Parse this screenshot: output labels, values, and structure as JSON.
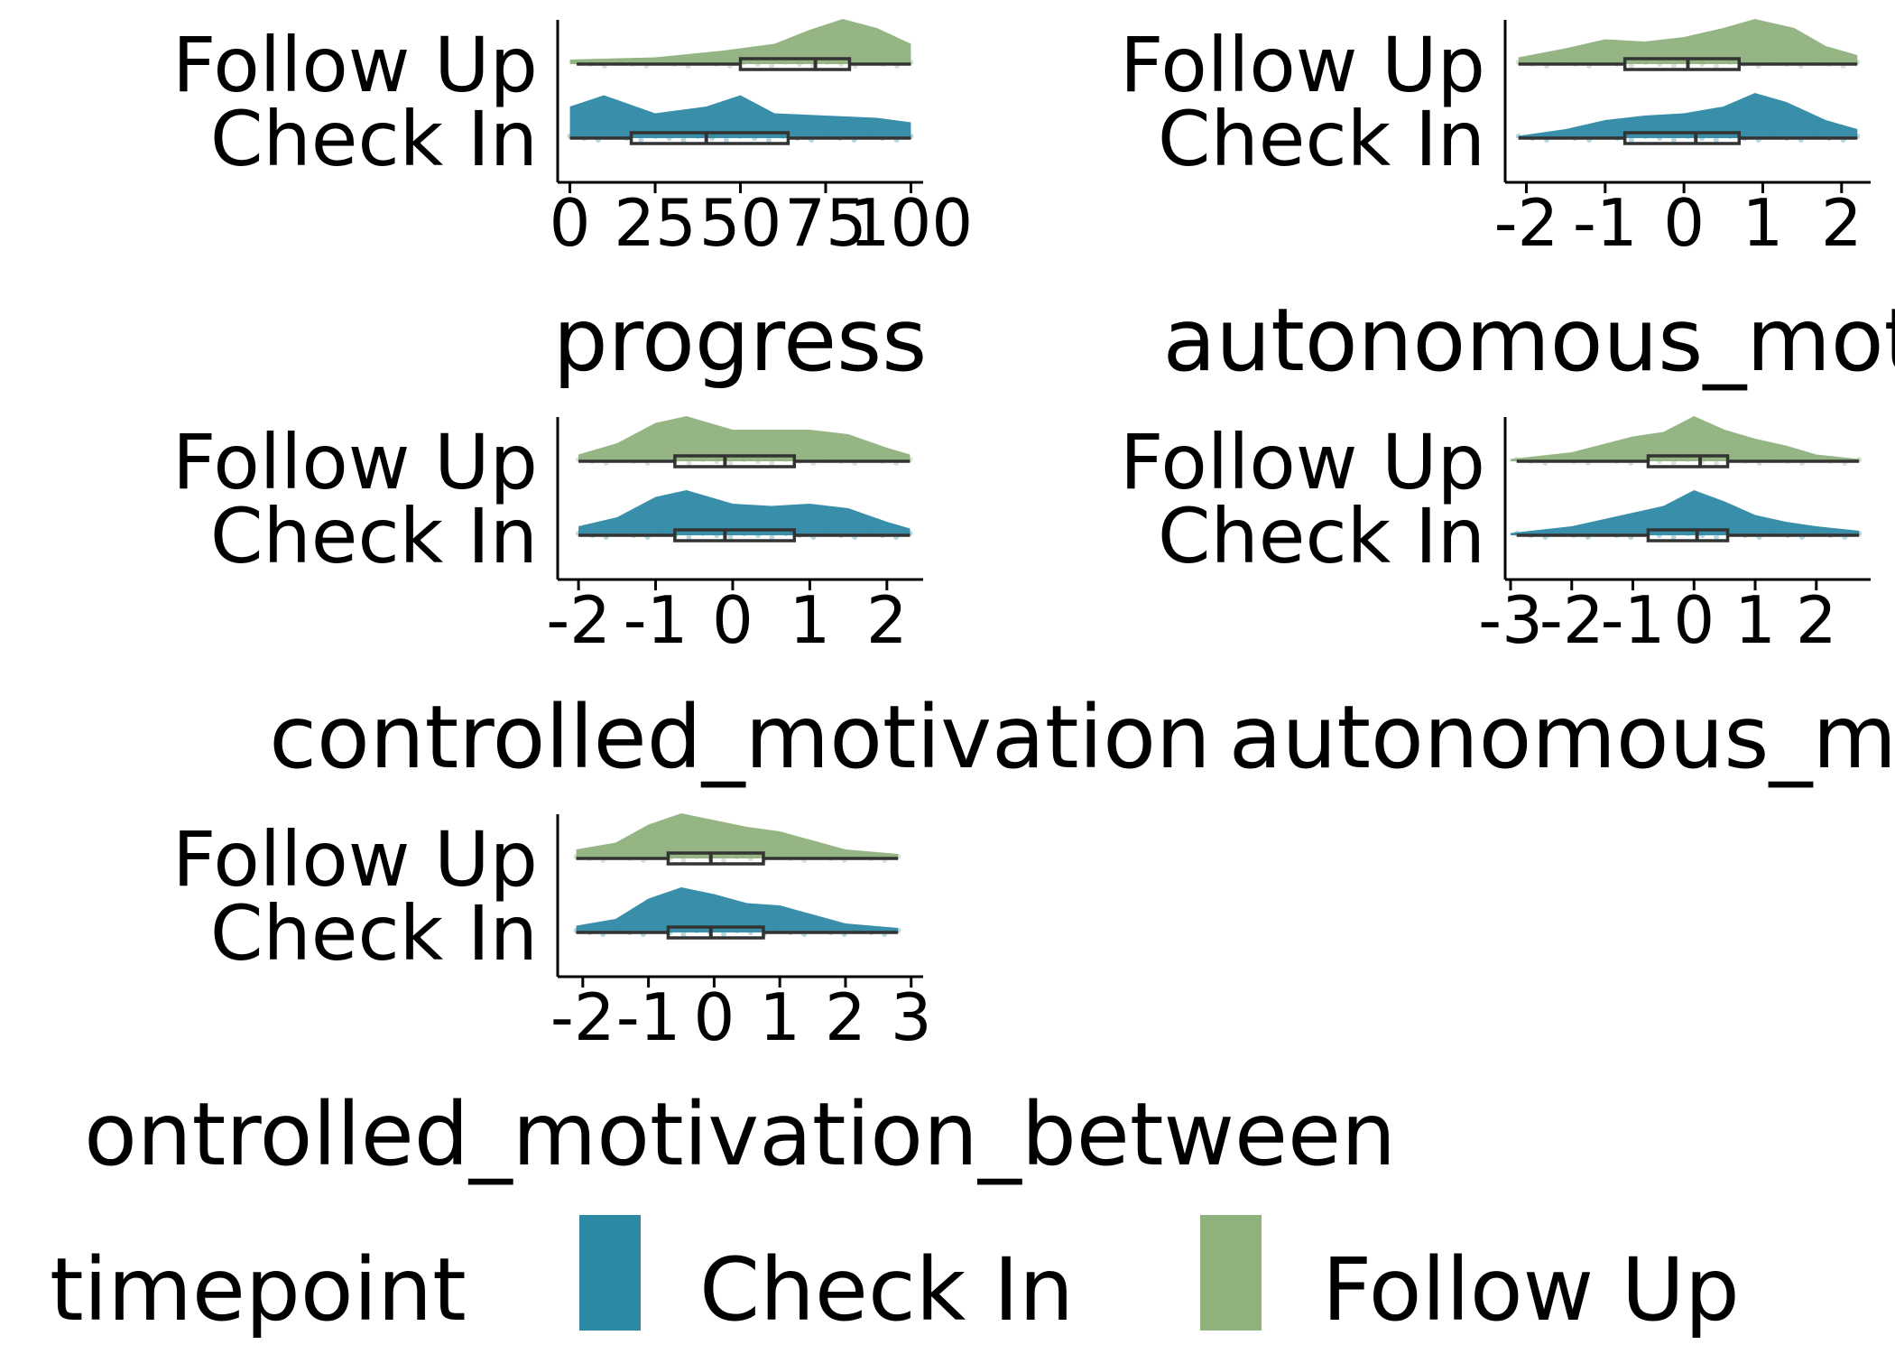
{
  "chart_data": [
    {
      "type": "raincloud",
      "xlabel": "progress",
      "categories": [
        "Check In",
        "Follow Up"
      ],
      "xlim": [
        -2,
        102
      ],
      "ticks": [
        0,
        25,
        50,
        75,
        100
      ],
      "series": [
        {
          "name": "Check In",
          "density": [
            [
              0,
              0.7
            ],
            [
              10,
              0.95
            ],
            [
              25,
              0.55
            ],
            [
              40,
              0.7
            ],
            [
              50,
              0.95
            ],
            [
              60,
              0.55
            ],
            [
              75,
              0.5
            ],
            [
              90,
              0.45
            ],
            [
              100,
              0.35
            ]
          ],
          "box": {
            "min": 0,
            "q1": 18,
            "median": 40,
            "q3": 64,
            "max": 100
          }
        },
        {
          "name": "Follow Up",
          "density": [
            [
              0,
              0.1
            ],
            [
              25,
              0.15
            ],
            [
              45,
              0.3
            ],
            [
              60,
              0.45
            ],
            [
              70,
              0.75
            ],
            [
              80,
              1.0
            ],
            [
              90,
              0.8
            ],
            [
              100,
              0.45
            ]
          ],
          "box": {
            "min": 2,
            "q1": 50,
            "median": 72,
            "q3": 82,
            "max": 100
          }
        }
      ]
    },
    {
      "type": "raincloud",
      "xlabel": "autonomous_motivation",
      "categories": [
        "Check In",
        "Follow Up"
      ],
      "xlim": [
        -2.2,
        2.3
      ],
      "ticks": [
        -2,
        -1,
        0,
        1,
        2
      ],
      "series": [
        {
          "name": "Check In",
          "density": [
            [
              -2.1,
              0.05
            ],
            [
              -1.5,
              0.2
            ],
            [
              -1.0,
              0.4
            ],
            [
              -0.5,
              0.5
            ],
            [
              0.0,
              0.55
            ],
            [
              0.5,
              0.7
            ],
            [
              0.9,
              1.0
            ],
            [
              1.3,
              0.8
            ],
            [
              1.8,
              0.4
            ],
            [
              2.2,
              0.2
            ]
          ],
          "box": {
            "min": -2.1,
            "q1": -0.75,
            "median": 0.15,
            "q3": 0.7,
            "max": 2.2
          }
        },
        {
          "name": "Follow Up",
          "density": [
            [
              -2.1,
              0.15
            ],
            [
              -1.5,
              0.35
            ],
            [
              -1.0,
              0.55
            ],
            [
              -0.5,
              0.5
            ],
            [
              0.0,
              0.6
            ],
            [
              0.5,
              0.8
            ],
            [
              0.9,
              1.0
            ],
            [
              1.4,
              0.8
            ],
            [
              1.8,
              0.4
            ],
            [
              2.2,
              0.2
            ]
          ],
          "box": {
            "min": -2.1,
            "q1": -0.75,
            "median": 0.05,
            "q3": 0.7,
            "max": 2.2
          }
        }
      ]
    },
    {
      "type": "raincloud",
      "xlabel": "controlled_motivation",
      "categories": [
        "Check In",
        "Follow Up"
      ],
      "xlim": [
        -2.2,
        2.4
      ],
      "ticks": [
        -2,
        -1,
        0,
        1,
        2
      ],
      "series": [
        {
          "name": "Check In",
          "density": [
            [
              -2.0,
              0.2
            ],
            [
              -1.5,
              0.4
            ],
            [
              -1.0,
              0.85
            ],
            [
              -0.6,
              1.0
            ],
            [
              0.0,
              0.7
            ],
            [
              0.5,
              0.65
            ],
            [
              1.0,
              0.7
            ],
            [
              1.5,
              0.6
            ],
            [
              2.0,
              0.3
            ],
            [
              2.3,
              0.15
            ]
          ],
          "box": {
            "min": -2.0,
            "q1": -0.75,
            "median": -0.1,
            "q3": 0.8,
            "max": 2.3
          }
        },
        {
          "name": "Follow Up",
          "density": [
            [
              -2.0,
              0.15
            ],
            [
              -1.5,
              0.4
            ],
            [
              -1.0,
              0.85
            ],
            [
              -0.6,
              1.0
            ],
            [
              0.0,
              0.7
            ],
            [
              0.5,
              0.7
            ],
            [
              1.0,
              0.7
            ],
            [
              1.5,
              0.6
            ],
            [
              2.0,
              0.3
            ],
            [
              2.3,
              0.15
            ]
          ],
          "box": {
            "min": -2.0,
            "q1": -0.75,
            "median": -0.1,
            "q3": 0.8,
            "max": 2.3
          }
        }
      ]
    },
    {
      "type": "raincloud",
      "xlabel": "autonomous_motivat",
      "categories": [
        "Check In",
        "Follow Up"
      ],
      "xlim": [
        -3.0,
        2.8
      ],
      "ticks": [
        -3,
        -2,
        -1,
        0,
        1,
        2
      ],
      "series": [
        {
          "name": "Check In",
          "density": [
            [
              -3.0,
              0.05
            ],
            [
              -2.0,
              0.2
            ],
            [
              -1.0,
              0.5
            ],
            [
              -0.5,
              0.65
            ],
            [
              0.0,
              1.0
            ],
            [
              0.5,
              0.75
            ],
            [
              1.0,
              0.45
            ],
            [
              1.5,
              0.3
            ],
            [
              2.0,
              0.2
            ],
            [
              2.7,
              0.1
            ]
          ],
          "box": {
            "min": -2.9,
            "q1": -0.75,
            "median": 0.05,
            "q3": 0.55,
            "max": 2.7
          }
        },
        {
          "name": "Follow Up",
          "density": [
            [
              -3.0,
              0.05
            ],
            [
              -2.0,
              0.2
            ],
            [
              -1.0,
              0.55
            ],
            [
              -0.5,
              0.65
            ],
            [
              0.0,
              1.0
            ],
            [
              0.5,
              0.7
            ],
            [
              1.0,
              0.5
            ],
            [
              1.5,
              0.35
            ],
            [
              2.0,
              0.15
            ],
            [
              2.7,
              0.05
            ]
          ],
          "box": {
            "min": -2.9,
            "q1": -0.75,
            "median": 0.1,
            "q3": 0.55,
            "max": 2.7
          }
        }
      ]
    },
    {
      "type": "raincloud",
      "xlabel": "ontrolled_motivation_between",
      "categories": [
        "Check In",
        "Follow Up"
      ],
      "xlim": [
        -2.3,
        3.1
      ],
      "ticks": [
        -2,
        -1,
        0,
        1,
        2,
        3
      ],
      "series": [
        {
          "name": "Check In",
          "density": [
            [
              -2.1,
              0.15
            ],
            [
              -1.5,
              0.3
            ],
            [
              -1.0,
              0.75
            ],
            [
              -0.5,
              1.0
            ],
            [
              0.0,
              0.85
            ],
            [
              0.5,
              0.65
            ],
            [
              1.0,
              0.6
            ],
            [
              1.5,
              0.4
            ],
            [
              2.0,
              0.2
            ],
            [
              2.8,
              0.1
            ]
          ],
          "box": {
            "min": -2.1,
            "q1": -0.7,
            "median": -0.05,
            "q3": 0.75,
            "max": 2.8
          }
        },
        {
          "name": "Follow Up",
          "density": [
            [
              -2.1,
              0.2
            ],
            [
              -1.5,
              0.35
            ],
            [
              -1.0,
              0.75
            ],
            [
              -0.5,
              1.0
            ],
            [
              0.0,
              0.85
            ],
            [
              0.5,
              0.7
            ],
            [
              1.0,
              0.6
            ],
            [
              1.5,
              0.4
            ],
            [
              2.0,
              0.2
            ],
            [
              2.8,
              0.1
            ]
          ],
          "box": {
            "min": -2.1,
            "q1": -0.7,
            "median": -0.05,
            "q3": 0.75,
            "max": 2.8
          }
        }
      ]
    }
  ],
  "legend": {
    "title": "timepoint",
    "placement": "bottom",
    "items": [
      {
        "label": "Check In",
        "color": "#2e89a5"
      },
      {
        "label": "Follow Up",
        "color": "#8fb27d"
      }
    ]
  },
  "colors": {
    "Check In": "#2e89a5",
    "Follow Up": "#8fb27d"
  }
}
